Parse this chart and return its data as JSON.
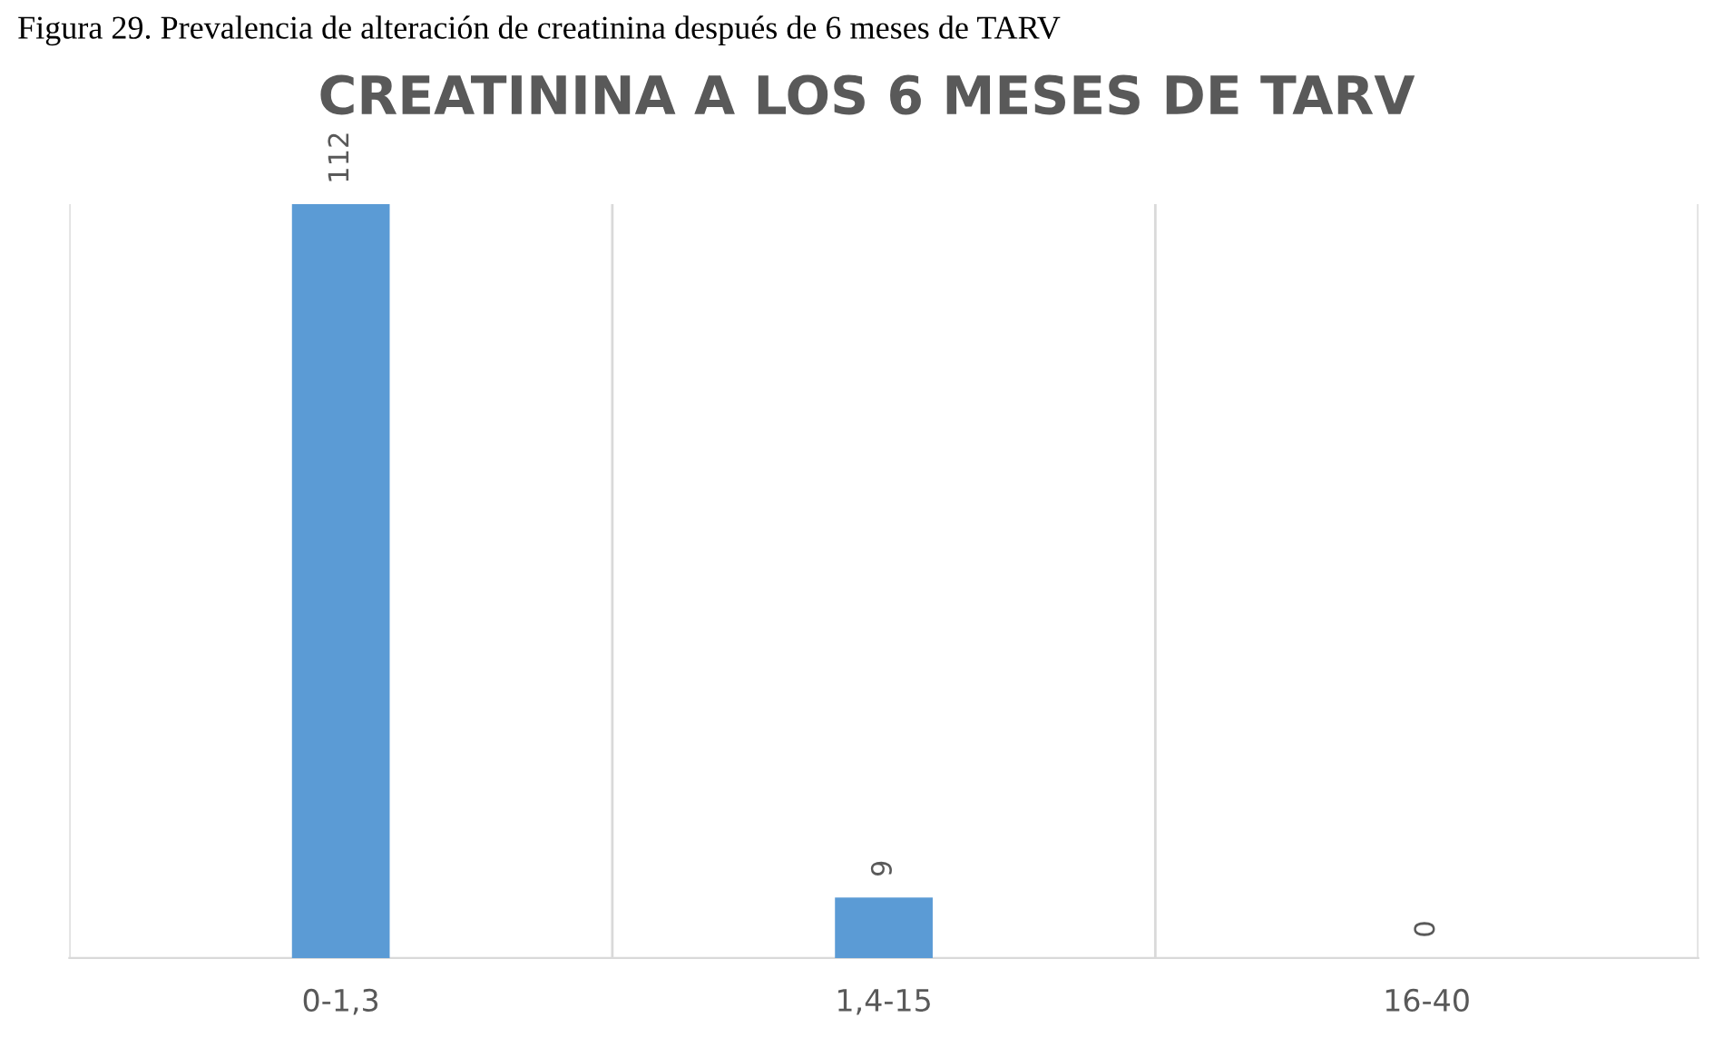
{
  "chart_data": {
    "type": "bar",
    "title": "CREATININA A LOS 6 MESES DE TARV",
    "annotations": [
      "Figura 29. Prevalencia de alteración de creatinina después de 6 meses de TARV"
    ],
    "categories": [
      "0-1,3",
      "1,4-15",
      "16-40"
    ],
    "values": [
      112,
      9,
      0
    ],
    "color": "#5b9bd5",
    "data_labels": true,
    "grid": "x"
  }
}
